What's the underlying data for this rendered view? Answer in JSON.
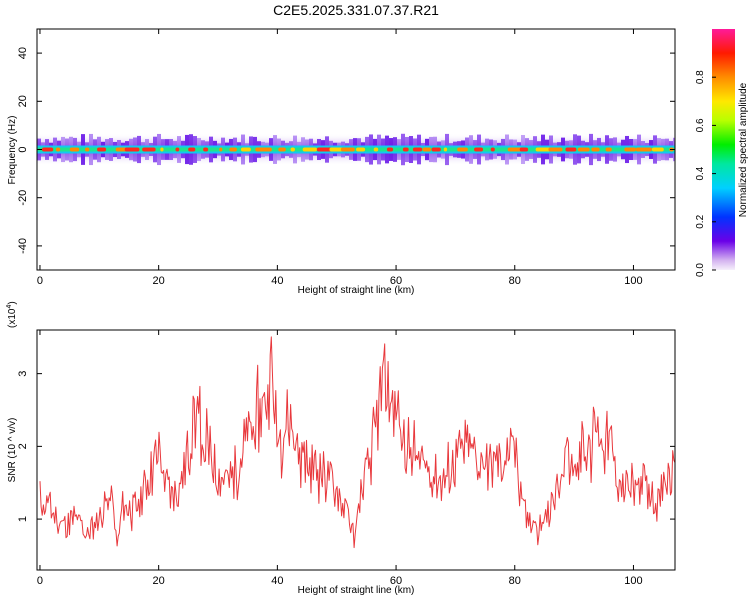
{
  "chart_data": [
    {
      "type": "heatmap",
      "title": "C2E5.2025.331.07.37.R21",
      "xlabel": "Height of straight line (km)",
      "ylabel": "Frequency (Hz)",
      "xlim": [
        -0.5,
        107
      ],
      "ylim": [
        -50,
        50
      ],
      "xticks": [
        0,
        20,
        40,
        60,
        80,
        100
      ],
      "yticks": [
        -40,
        -20,
        0,
        20,
        40
      ],
      "band_center_hz": 0,
      "colorbar": {
        "label": "Normalized spectral amplitude",
        "range": [
          0,
          1
        ],
        "ticks": [
          "0.0",
          "0.2",
          "0.4",
          "0.6",
          "0.8"
        ],
        "tick_values": [
          0.0,
          0.2,
          0.4,
          0.6,
          0.8
        ]
      }
    },
    {
      "type": "line",
      "title": "",
      "xlabel": "Height of straight line (km)",
      "ylabel": "SNR (10 ^ v/v)",
      "y_multiplier": "(x10",
      "y_multiplier_exp": "4",
      "y_multiplier_close": ")",
      "xlim": [
        -0.5,
        107
      ],
      "ylim": [
        0.3,
        3.6
      ],
      "xticks": [
        0,
        20,
        40,
        60,
        80,
        100
      ],
      "yticks": [
        1,
        2,
        3
      ],
      "line_color": "#e8383c",
      "series": [
        {
          "name": "SNR",
          "x": [
            0,
            2,
            4,
            6,
            8,
            10,
            12,
            13,
            14,
            16,
            18,
            20,
            22,
            24,
            26,
            28,
            30,
            32,
            34,
            36,
            38,
            39,
            40,
            42,
            44,
            46,
            48,
            50,
            52,
            53,
            54,
            56,
            58,
            60,
            62,
            64,
            66,
            68,
            70,
            72,
            74,
            76,
            78,
            80,
            82,
            84,
            86,
            88,
            90,
            92,
            94,
            96,
            98,
            100,
            102,
            104,
            106,
            107
          ],
          "values": [
            1.3,
            1.1,
            0.9,
            1.0,
            0.8,
            1.0,
            1.3,
            0.6,
            1.2,
            1.1,
            1.5,
            1.9,
            1.3,
            1.5,
            2.4,
            2.0,
            1.6,
            1.5,
            1.9,
            2.2,
            2.6,
            3.0,
            2.1,
            2.4,
            1.8,
            1.7,
            1.6,
            1.4,
            1.0,
            0.7,
            1.3,
            1.9,
            2.9,
            2.4,
            2.0,
            1.8,
            1.6,
            1.5,
            1.8,
            2.0,
            1.8,
            1.7,
            1.8,
            1.9,
            1.0,
            0.8,
            1.1,
            1.7,
            1.9,
            2.0,
            2.2,
            2.0,
            1.4,
            1.4,
            1.5,
            1.2,
            1.6,
            1.5
          ]
        }
      ]
    }
  ]
}
